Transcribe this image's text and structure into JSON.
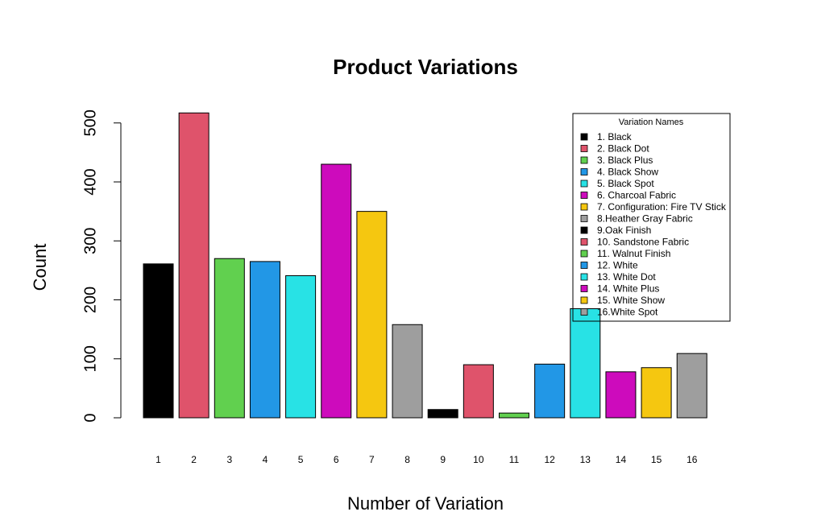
{
  "chart_data": {
    "type": "bar",
    "title": "Product Variations",
    "xlabel": "Number of Variation",
    "ylabel": "Count",
    "ylim": [
      0,
      500
    ],
    "yticks": [
      0,
      100,
      200,
      300,
      400,
      500
    ],
    "grid": false,
    "categories": [
      "1",
      "2",
      "3",
      "4",
      "5",
      "6",
      "7",
      "8",
      "9",
      "10",
      "11",
      "12",
      "13",
      "14",
      "15",
      "16"
    ],
    "values": [
      261,
      517,
      270,
      265,
      241,
      430,
      350,
      158,
      14,
      90,
      8,
      91,
      185,
      78,
      85,
      109
    ],
    "colors": [
      "#000000",
      "#DF536B",
      "#61D04F",
      "#2297E6",
      "#28E2E5",
      "#CD0BBC",
      "#F5C710",
      "#9E9E9E",
      "#000000",
      "#DF536B",
      "#61D04F",
      "#2297E6",
      "#28E2E5",
      "#CD0BBC",
      "#F5C710",
      "#9E9E9E"
    ],
    "legend": {
      "title": "Variation Names",
      "position": "top-right",
      "entries": [
        "1. Black",
        "2. Black Dot",
        "3. Black Plus",
        "4. Black Show",
        "5. Black Spot",
        "6. Charcoal Fabric",
        "7. Configuration: Fire TV Stick",
        "8.Heather Gray Fabric",
        "9.Oak Finish",
        "10. Sandstone Fabric",
        "11. Walnut Finish",
        "12. White",
        "13. White Dot",
        "14. White Plus",
        "15. White Show",
        "16.White Spot"
      ]
    }
  }
}
